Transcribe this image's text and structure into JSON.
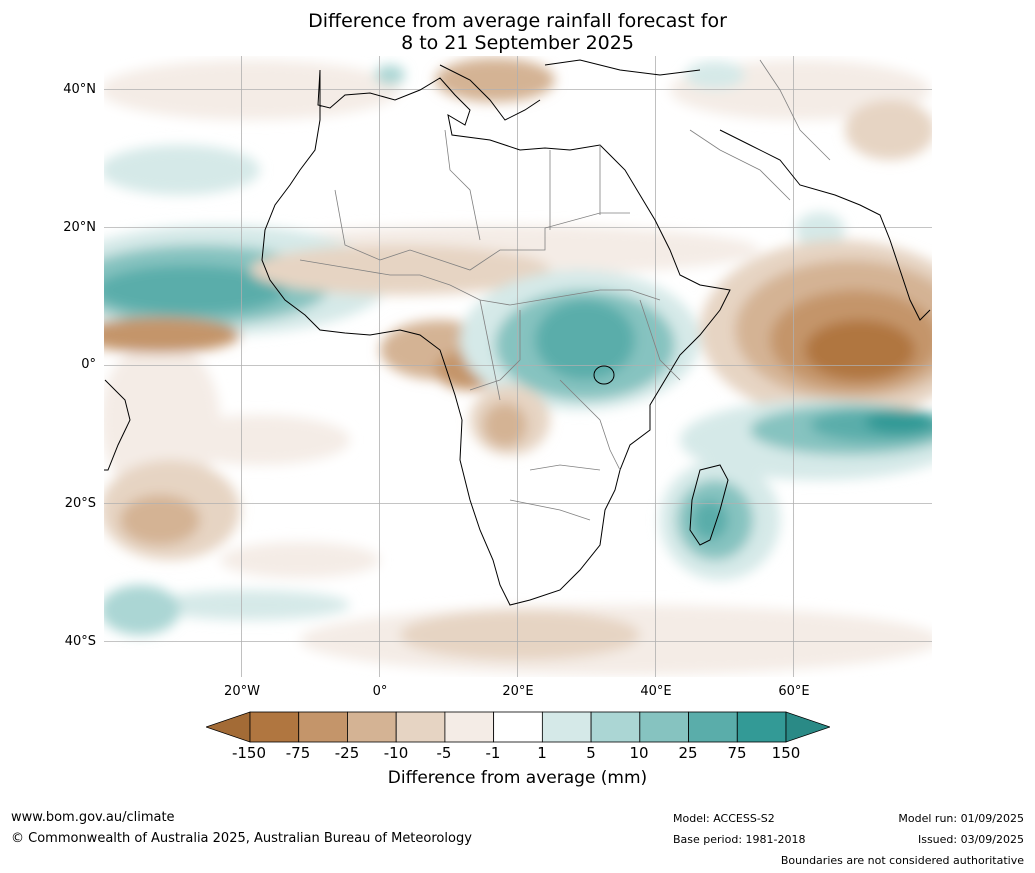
{
  "title_line1": "Difference from average rainfall forecast for",
  "title_line2": "8 to 21 September 2025",
  "lat_labels": [
    "40°N",
    "20°N",
    "0°",
    "20°S",
    "40°S"
  ],
  "lon_labels": [
    "20°W",
    "0°",
    "20°E",
    "40°E",
    "60°E"
  ],
  "colorbar": {
    "title": "Difference from average (mm)",
    "ticks": [
      "-150",
      "-75",
      "-25",
      "-10",
      "-5",
      "-1",
      "1",
      "5",
      "10",
      "25",
      "75",
      "150"
    ],
    "colors": [
      "#a36b36",
      "#b07640",
      "#c4956a",
      "#d4b394",
      "#e6d4c3",
      "#f4ece6",
      "#ffffff",
      "#d5e9e8",
      "#abd6d4",
      "#86c3c0",
      "#5aadaa",
      "#339a96",
      "#2a8a86"
    ]
  },
  "footer": {
    "website": "www.bom.gov.au/climate",
    "copyright": "© Commonwealth of Australia 2025, Australian Bureau of Meteorology",
    "model": "Model: ACCESS-S2",
    "base_period": "Base period: 1981-2018",
    "model_run": "Model run: 01/09/2025",
    "issued": "Issued: 03/09/2025",
    "boundaries_note": "Boundaries are not considered authoritative"
  }
}
